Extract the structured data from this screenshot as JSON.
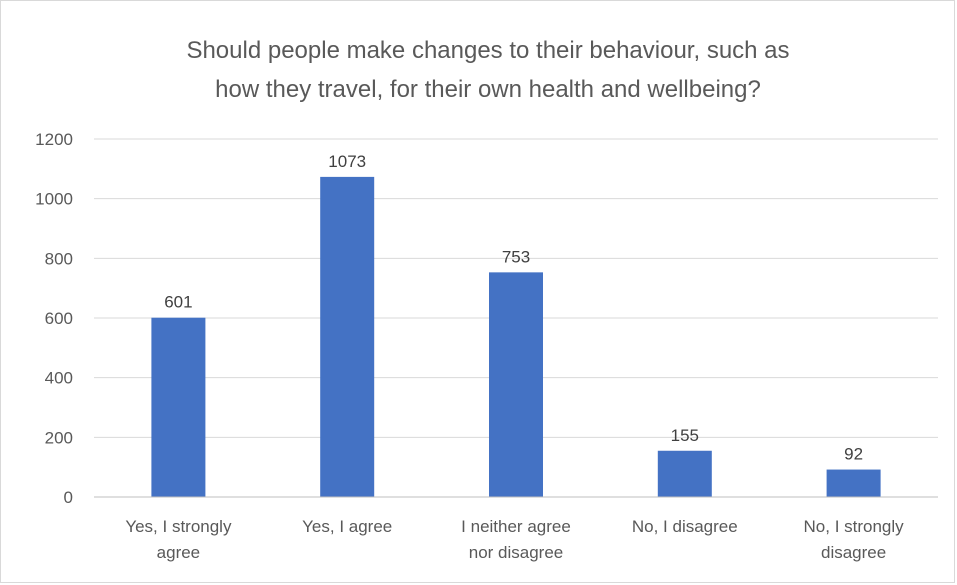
{
  "chart_data": {
    "type": "bar",
    "title_lines": [
      "Should people make changes to their behaviour, such as",
      "how they travel, for their own health and wellbeing?"
    ],
    "categories": [
      [
        "Yes, I strongly",
        "agree"
      ],
      [
        "Yes, I agree"
      ],
      [
        "I neither agree",
        "nor disagree"
      ],
      [
        "No, I disagree"
      ],
      [
        "No, I strongly",
        "disagree"
      ]
    ],
    "values": [
      601,
      1073,
      753,
      155,
      92
    ],
    "ylim": [
      0,
      1200
    ],
    "yticks": [
      0,
      200,
      400,
      600,
      800,
      1000,
      1200
    ],
    "grid": true,
    "legend": "none",
    "xlabel": "",
    "ylabel": "",
    "colors": {
      "bar": "#4472c4",
      "grid": "#d9d9d9",
      "axis": "#bfbfbf"
    }
  }
}
